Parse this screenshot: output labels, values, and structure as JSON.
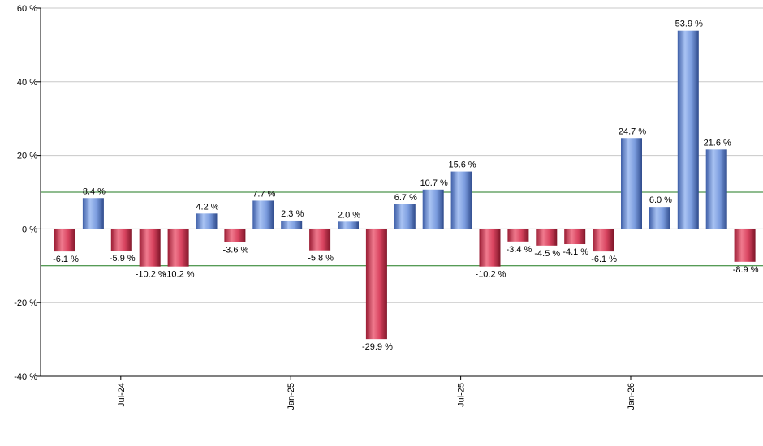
{
  "chart_data": {
    "type": "bar",
    "title": "",
    "xlabel": "",
    "ylabel": "",
    "ylim": [
      -40,
      60
    ],
    "y_ticks": [
      60,
      40,
      20,
      0,
      -20,
      -40
    ],
    "y_tick_suffix": " %",
    "grid": true,
    "x_tick_labels": [
      {
        "label": "Jul-24",
        "index": 2
      },
      {
        "label": "Jan-25",
        "index": 8
      },
      {
        "label": "Jul-25",
        "index": 14
      },
      {
        "label": "Jan-26",
        "index": 20
      }
    ],
    "reference_lines": [
      10,
      -10
    ],
    "values": [
      -6.1,
      8.4,
      -5.9,
      -10.2,
      -10.2,
      4.2,
      -3.6,
      7.7,
      2.3,
      -5.8,
      2.0,
      -29.9,
      6.7,
      10.7,
      15.6,
      -10.2,
      -3.4,
      -4.5,
      -4.1,
      -6.1,
      24.7,
      6.0,
      53.9,
      21.6,
      -8.9
    ],
    "labels": [
      "-6.1 %",
      "8.4 %",
      "-5.9 %",
      "-10.2 %",
      "-10.2 %",
      "4.2 %",
      "-3.6 %",
      "7.7 %",
      "2.3 %",
      "-5.8 %",
      "2.0 %",
      "-29.9 %",
      "6.7 %",
      "10.7 %",
      "15.6 %",
      "-10.2 %",
      "-3.4 %",
      "-4.5 %",
      "-4.1 %",
      "-6.1 %",
      "24.7 %",
      "6.0 %",
      "53.9 %",
      "21.6 %",
      "-8.9 %"
    ],
    "colors": {
      "positive": "#6f8fd6",
      "negative": "#d43a55",
      "grid": "#c8c8c8",
      "reference": "#1f7a1f",
      "axis": "#000000"
    }
  }
}
